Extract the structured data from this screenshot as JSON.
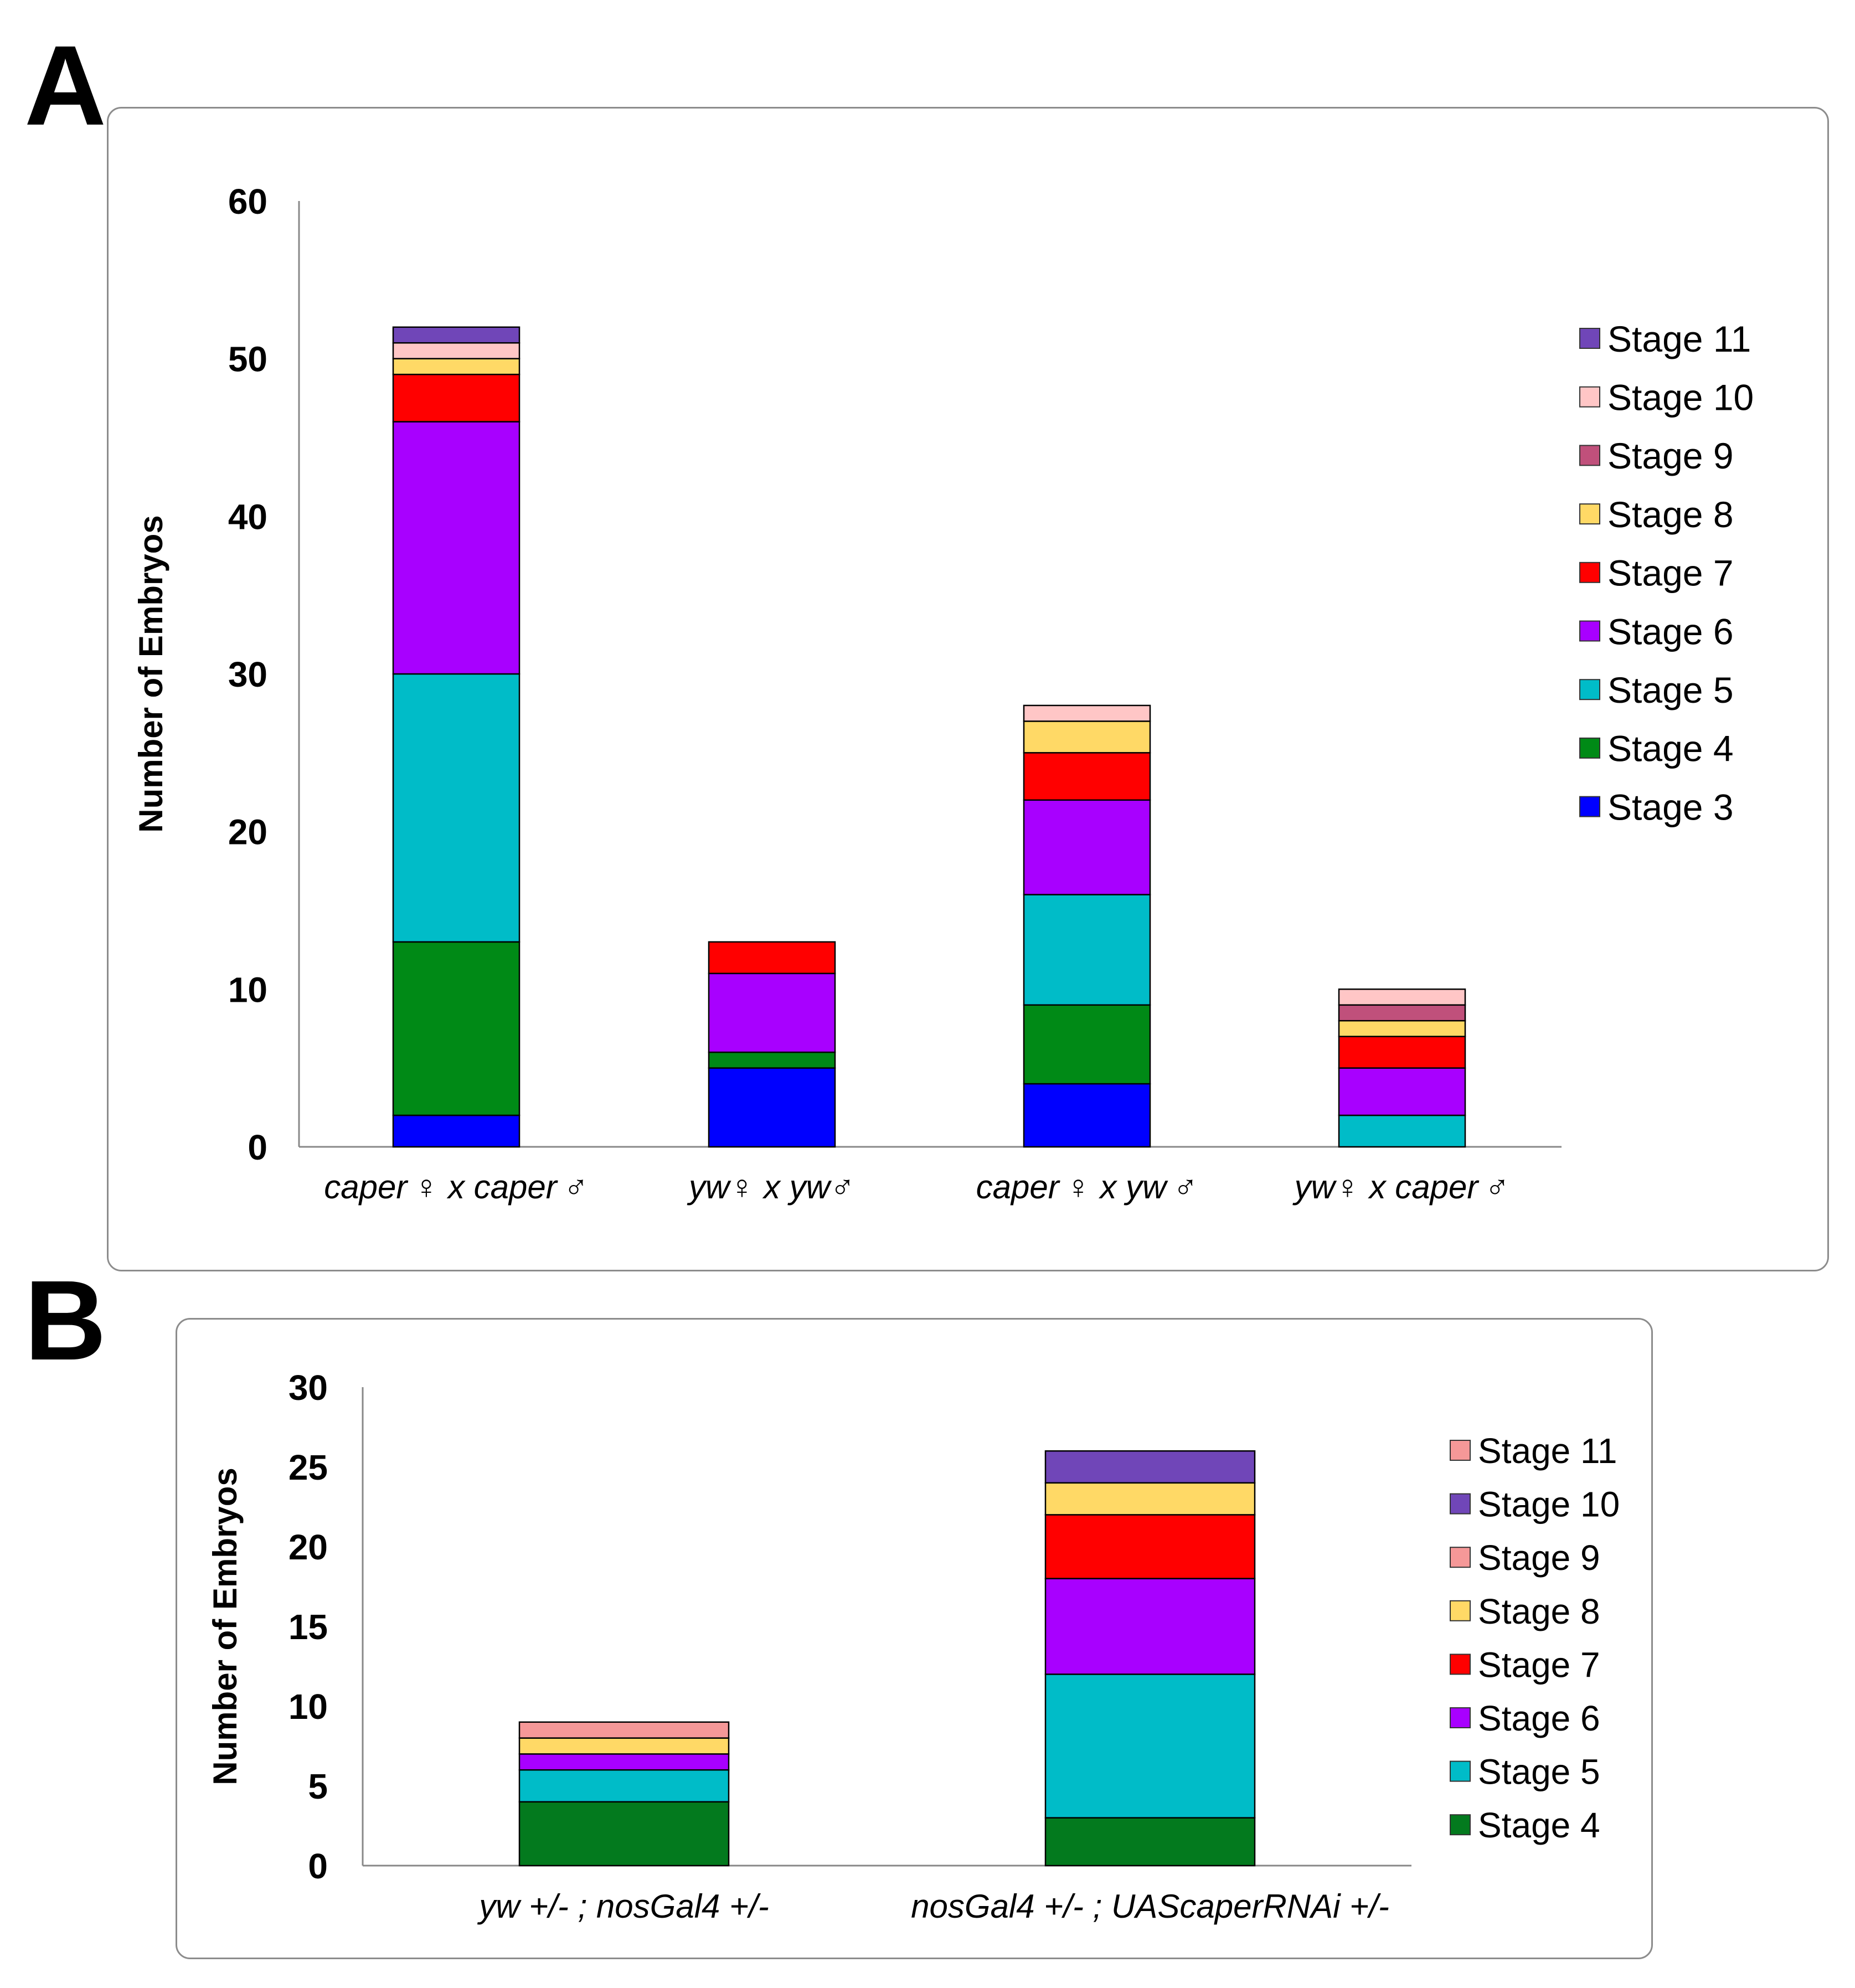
{
  "panels": [
    {
      "letter": "A"
    },
    {
      "letter": "B"
    }
  ],
  "chart_data": [
    {
      "type": "bar",
      "stacked": true,
      "ylabel": "Number of Embryos",
      "ylim": [
        0,
        60
      ],
      "yticks": [
        "0",
        "10",
        "20",
        "30",
        "40",
        "50",
        "60"
      ],
      "categories": [
        "caper ♀ x caper ♂",
        "yw♀ x yw♂",
        "caper ♀ x yw ♂",
        "yw♀ x caper ♂"
      ],
      "legend_position": "right",
      "series": [
        {
          "name": "Stage 3",
          "color": "#0000ff",
          "values": [
            2,
            5,
            4,
            0
          ]
        },
        {
          "name": "Stage 4",
          "color": "#008a16",
          "values": [
            11,
            1,
            5,
            0
          ]
        },
        {
          "name": "Stage 5",
          "color": "#00bcc8",
          "values": [
            17,
            0,
            7,
            2
          ]
        },
        {
          "name": "Stage 6",
          "color": "#a800ff",
          "values": [
            16,
            5,
            6,
            3
          ]
        },
        {
          "name": "Stage 7",
          "color": "#ff0000",
          "values": [
            3,
            2,
            3,
            2
          ]
        },
        {
          "name": "Stage 8",
          "color": "#ffd966",
          "values": [
            1,
            0,
            2,
            1
          ]
        },
        {
          "name": "Stage 9",
          "color": "#c0507b",
          "values": [
            0,
            0,
            0,
            1
          ]
        },
        {
          "name": "Stage 10",
          "color": "#ffc6c6",
          "values": [
            1,
            0,
            1,
            1
          ]
        },
        {
          "name": "Stage 11",
          "color": "#7046b8",
          "values": [
            1,
            0,
            0,
            0
          ]
        }
      ]
    },
    {
      "type": "bar",
      "stacked": true,
      "ylabel": "Number of Embryos",
      "ylim": [
        0,
        30
      ],
      "yticks": [
        "0",
        "5",
        "10",
        "15",
        "20",
        "25",
        "30"
      ],
      "categories": [
        "yw +/- ; nosGal4 +/-",
        "nosGal4 +/- ; UAScaperRNAi +/-"
      ],
      "legend_position": "right",
      "series": [
        {
          "name": "Stage 4",
          "color": "#037a1e",
          "values": [
            4,
            3
          ]
        },
        {
          "name": "Stage 5",
          "color": "#00bcc8",
          "values": [
            2,
            9
          ]
        },
        {
          "name": "Stage 6",
          "color": "#a800ff",
          "values": [
            1,
            6
          ]
        },
        {
          "name": "Stage 7",
          "color": "#ff0000",
          "values": [
            0,
            4
          ]
        },
        {
          "name": "Stage 8",
          "color": "#ffd966",
          "values": [
            1,
            2
          ]
        },
        {
          "name": "Stage 9",
          "color": "#f59898",
          "values": [
            0,
            0
          ]
        },
        {
          "name": "Stage 10",
          "color": "#7046b8",
          "values": [
            0,
            2
          ]
        },
        {
          "name": "Stage 11",
          "color": "#f59898",
          "values": [
            1,
            0
          ]
        }
      ]
    }
  ]
}
